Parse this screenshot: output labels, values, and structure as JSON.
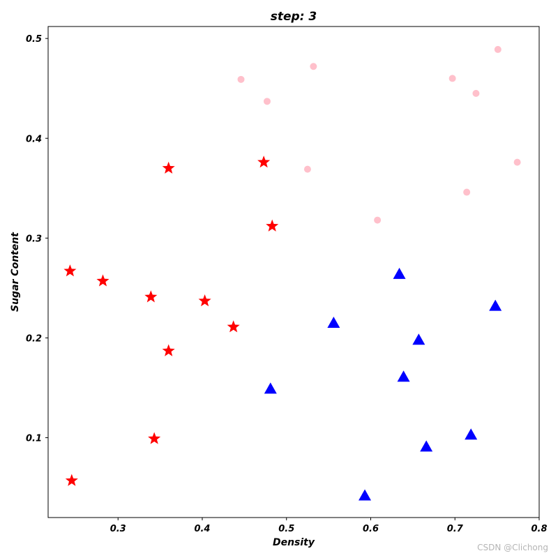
{
  "chart_data": {
    "type": "scatter",
    "title": "step: 3",
    "xlabel": "Density",
    "ylabel": "Sugar Content",
    "xlim": [
      0.217,
      0.8
    ],
    "ylim": [
      0.02,
      0.512
    ],
    "xticks": [
      "0.3",
      "0.4",
      "0.5",
      "0.6",
      "0.7",
      "0.8"
    ],
    "yticks": [
      "0.1",
      "0.2",
      "0.3",
      "0.4",
      "0.5"
    ],
    "grid": false,
    "series": [
      {
        "marker": "star",
        "color": "#ff0000",
        "x": [
          0.243,
          0.245,
          0.282,
          0.339,
          0.343,
          0.36,
          0.36,
          0.403,
          0.437,
          0.473,
          0.483
        ],
        "y": [
          0.267,
          0.057,
          0.257,
          0.241,
          0.099,
          0.37,
          0.187,
          0.237,
          0.211,
          0.376,
          0.312
        ]
      },
      {
        "marker": "triangle",
        "color": "#0000ff",
        "x": [
          0.481,
          0.556,
          0.593,
          0.634,
          0.639,
          0.657,
          0.666,
          0.719,
          0.748
        ],
        "y": [
          0.149,
          0.215,
          0.042,
          0.264,
          0.161,
          0.198,
          0.091,
          0.103,
          0.232
        ]
      },
      {
        "marker": "circle",
        "color": "#ffc0cb",
        "x": [
          0.446,
          0.477,
          0.525,
          0.532,
          0.608,
          0.697,
          0.714,
          0.725,
          0.751,
          0.774
        ],
        "y": [
          0.459,
          0.437,
          0.369,
          0.472,
          0.318,
          0.46,
          0.346,
          0.445,
          0.489,
          0.376
        ]
      }
    ]
  },
  "watermark": "CSDN @Clichong"
}
